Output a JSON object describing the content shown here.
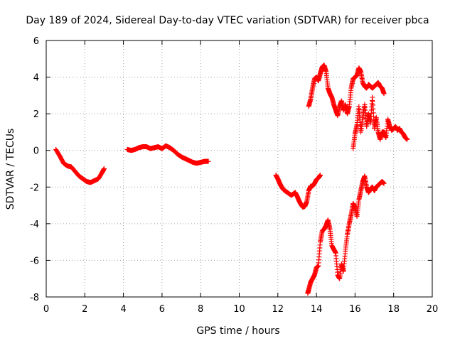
{
  "chart_data": {
    "type": "scatter",
    "title": "Day 189 of 2024, Sidereal Day-to-day VTEC variation (SDTVAR) for receiver pbca",
    "xlabel": "GPS time / hours",
    "ylabel": "SDTVAR / TECUs",
    "xlim": [
      0,
      20
    ],
    "ylim": [
      -8,
      6
    ],
    "xticks": [
      "0",
      "2",
      "4",
      "6",
      "8",
      "10",
      "12",
      "14",
      "16",
      "18",
      "20"
    ],
    "yticks": [
      "-8",
      "-6",
      "-4",
      "-2",
      "0",
      "2",
      "4",
      "6"
    ],
    "grid": true,
    "marker": "plus",
    "color": "#ff0000",
    "segments": [
      {
        "x": [
          0.5,
          0.7,
          0.9,
          1.1,
          1.3,
          1.5,
          1.7,
          1.9,
          2.1,
          2.3,
          2.5,
          2.7,
          2.9,
          3.0
        ],
        "y": [
          0.05,
          -0.3,
          -0.7,
          -0.85,
          -0.9,
          -1.15,
          -1.4,
          -1.55,
          -1.7,
          -1.75,
          -1.65,
          -1.55,
          -1.2,
          -1.0
        ]
      },
      {
        "x": [
          4.2,
          4.4,
          4.6,
          4.8,
          5.0,
          5.2,
          5.4,
          5.6,
          5.8,
          6.0,
          6.2,
          6.4,
          6.6,
          6.8,
          7.0,
          7.2,
          7.4,
          7.6,
          7.8,
          8.0,
          8.2,
          8.4
        ],
        "y": [
          0.05,
          0.0,
          0.05,
          0.15,
          0.2,
          0.2,
          0.1,
          0.15,
          0.2,
          0.1,
          0.25,
          0.15,
          0.0,
          -0.2,
          -0.35,
          -0.45,
          -0.55,
          -0.65,
          -0.7,
          -0.65,
          -0.6,
          -0.6
        ]
      },
      {
        "x": [
          11.9,
          12.0,
          12.1,
          12.2,
          12.3,
          12.5,
          12.7,
          12.9,
          13.0,
          13.1,
          13.2,
          13.3,
          13.4,
          13.5,
          13.6,
          13.7,
          13.8,
          13.9,
          14.0,
          14.1,
          14.2
        ],
        "y": [
          -1.35,
          -1.55,
          -1.8,
          -2.0,
          -2.15,
          -2.3,
          -2.45,
          -2.3,
          -2.5,
          -2.75,
          -2.95,
          -3.1,
          -3.05,
          -2.8,
          -2.2,
          -1.95,
          -1.95,
          -1.8,
          -1.6,
          -1.5,
          -1.35
        ]
      },
      {
        "x": [
          13.6,
          13.7,
          13.8,
          13.9,
          14.0,
          14.1,
          14.2,
          14.3,
          14.4,
          14.5,
          14.6,
          14.7,
          14.8,
          14.9,
          15.0,
          15.1,
          15.2,
          15.3,
          15.4,
          15.5,
          15.6,
          15.7,
          15.8,
          15.9,
          16.0,
          16.1,
          16.2,
          16.3,
          16.4,
          16.5,
          16.6,
          16.7,
          16.8,
          16.9,
          17.0,
          17.1,
          17.2,
          17.3,
          17.4,
          17.5
        ],
        "y": [
          2.4,
          2.8,
          3.4,
          3.9,
          4.0,
          3.8,
          4.2,
          4.55,
          4.65,
          4.3,
          3.4,
          3.1,
          2.9,
          2.5,
          2.2,
          1.9,
          2.4,
          2.7,
          2.2,
          2.5,
          2.0,
          2.4,
          3.4,
          3.9,
          4.0,
          4.1,
          4.5,
          4.3,
          3.7,
          3.5,
          3.4,
          3.6,
          3.5,
          3.4,
          3.5,
          3.6,
          3.7,
          3.5,
          3.4,
          3.1
        ]
      },
      {
        "x": [
          13.55,
          13.6,
          13.7,
          13.8,
          13.9,
          14.0,
          14.1,
          14.2,
          14.3,
          14.4,
          14.5,
          14.6,
          14.7,
          14.8,
          14.9,
          15.0,
          15.1,
          15.2,
          15.3,
          15.4,
          15.5,
          15.6,
          15.7,
          15.8,
          15.9,
          16.0,
          16.1,
          16.2,
          16.3,
          16.4,
          16.5,
          16.6,
          16.7,
          16.8,
          16.9,
          17.0,
          17.1,
          17.2,
          17.3,
          17.4,
          17.5
        ],
        "y": [
          -7.8,
          -7.6,
          -7.2,
          -7.0,
          -6.8,
          -6.4,
          -6.3,
          -5.0,
          -4.4,
          -4.3,
          -4.1,
          -3.8,
          -4.3,
          -5.2,
          -5.4,
          -5.6,
          -6.8,
          -7.0,
          -6.2,
          -6.6,
          -5.5,
          -4.6,
          -4.0,
          -3.5,
          -2.9,
          -3.1,
          -3.6,
          -2.7,
          -2.2,
          -1.7,
          -1.4,
          -2.0,
          -2.3,
          -2.1,
          -2.0,
          -2.2,
          -2.0,
          -1.9,
          -1.8,
          -1.7,
          -1.8
        ]
      },
      {
        "x": [
          15.9,
          16.0,
          16.1,
          16.2,
          16.3,
          16.4,
          16.5,
          16.6,
          16.7,
          16.8,
          16.9,
          17.0,
          17.1,
          17.2,
          17.3,
          17.4,
          17.5,
          17.6,
          17.7,
          17.8,
          17.9,
          18.0,
          18.1,
          18.2,
          18.3,
          18.4,
          18.5,
          18.6,
          18.7
        ],
        "y": [
          0.1,
          0.9,
          1.4,
          2.4,
          1.0,
          1.8,
          2.5,
          1.3,
          2.0,
          1.5,
          2.9,
          1.2,
          1.8,
          1.0,
          0.6,
          1.0,
          1.0,
          0.7,
          1.7,
          1.3,
          1.1,
          1.2,
          1.3,
          1.1,
          1.2,
          1.0,
          0.9,
          0.7,
          0.6
        ]
      }
    ]
  }
}
